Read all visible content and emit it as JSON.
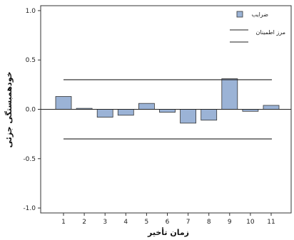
{
  "chart_data": {
    "type": "bar",
    "xlabel": "زمان تأخير",
    "ylabel": "خودهمبستگی جزئی",
    "categories": [
      "1",
      "2",
      "3",
      "4",
      "5",
      "6",
      "7",
      "8",
      "9",
      "10",
      "11"
    ],
    "series": [
      {
        "name": "ضرایب",
        "values": [
          0.13,
          0.01,
          -0.08,
          -0.06,
          0.06,
          -0.03,
          -0.14,
          -0.11,
          0.31,
          -0.02,
          0.04
        ]
      }
    ],
    "confidence_limits": {
      "name": "مرز اطمینان",
      "upper": 0.3,
      "lower": -0.3
    },
    "ylim": [
      -1.05,
      1.05
    ],
    "yticks": [
      -1.0,
      -0.5,
      0.0,
      0.5,
      1.0
    ],
    "ytick_labels": [
      "-1.0",
      "-0.5",
      "0.0",
      "0.5",
      "1.0"
    ],
    "grid": false,
    "legend_position": "top-right",
    "colors": {
      "bar": "#9bb3d6",
      "bar_stroke": "#333333",
      "line": "#222222"
    }
  }
}
